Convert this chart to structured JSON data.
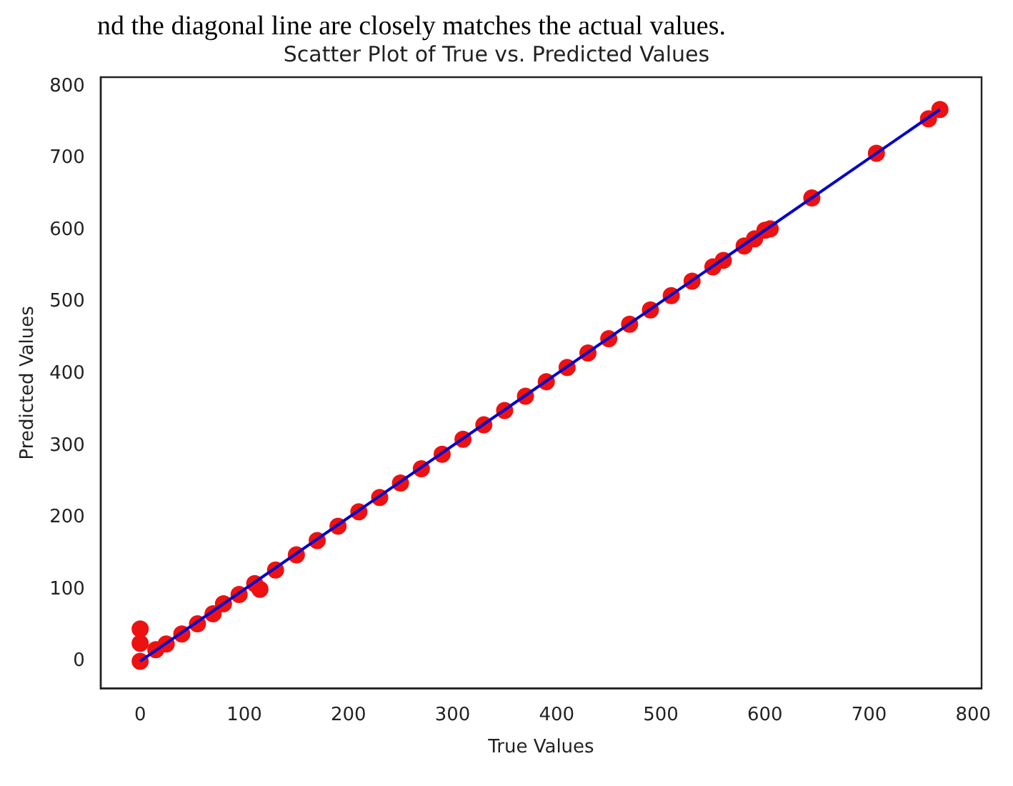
{
  "chart_data": {
    "type": "scatter",
    "title": "Scatter Plot of True vs. Predicted Values",
    "xlabel": "True Values",
    "ylabel": "Predicted Values",
    "annotations": [
      "nd the diagonal line are closely matches the actual values."
    ],
    "xlim": [
      -38,
      808
    ],
    "ylim": [
      -38,
      813
    ],
    "xticks": [
      0,
      100,
      200,
      300,
      400,
      500,
      600,
      700,
      800
    ],
    "yticks": [
      0,
      100,
      200,
      300,
      400,
      500,
      600,
      700,
      800
    ],
    "grid": false,
    "legend": false,
    "series": [
      {
        "type": "scatter",
        "marker": "circle",
        "color": "#ee1111",
        "x": [
          0,
          0,
          0,
          15,
          25,
          40,
          55,
          70,
          80,
          95,
          110,
          115,
          130,
          150,
          170,
          190,
          210,
          230,
          250,
          270,
          290,
          310,
          330,
          350,
          370,
          390,
          410,
          430,
          450,
          470,
          490,
          510,
          530,
          550,
          560,
          580,
          590,
          600,
          605,
          645,
          707,
          757,
          768
        ],
        "values": [
          0,
          25,
          45,
          16,
          24,
          38,
          52,
          66,
          80,
          93,
          108,
          100,
          127,
          148,
          168,
          188,
          208,
          228,
          248,
          268,
          288,
          309,
          329,
          349,
          369,
          389,
          409,
          429,
          449,
          469,
          489,
          509,
          529,
          549,
          558,
          578,
          588,
          600,
          602,
          645,
          707,
          755,
          768
        ]
      },
      {
        "type": "line",
        "marker": "none",
        "color": "#0000cc",
        "x": [
          0,
          768
        ],
        "values": [
          0,
          768
        ]
      }
    ]
  }
}
